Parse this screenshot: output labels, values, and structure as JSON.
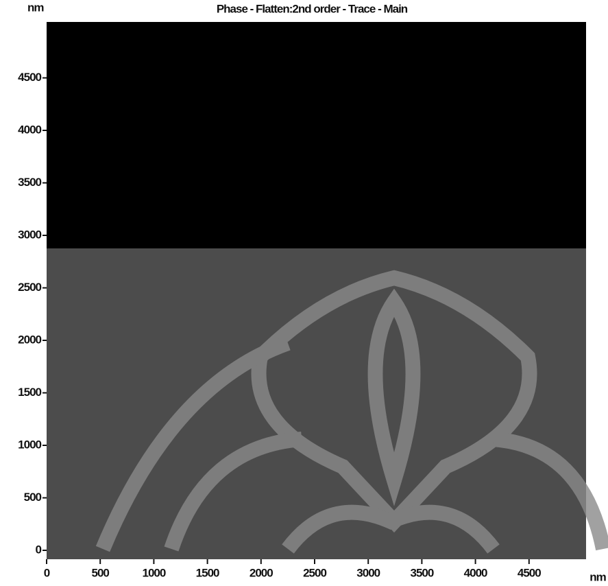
{
  "chart_data": {
    "type": "image",
    "title": "Phase - Flatten:2nd order - Trace - Main",
    "y_label": "nm",
    "x_label": "nm",
    "xlim": [
      0,
      5000
    ],
    "ylim": [
      0,
      5000
    ],
    "xticks": [
      0,
      500,
      1000,
      1500,
      2000,
      2500,
      3000,
      3500,
      4000,
      4500
    ],
    "yticks": [
      0,
      500,
      1000,
      1500,
      2000,
      2500,
      3000,
      3500,
      4000,
      4500
    ]
  }
}
